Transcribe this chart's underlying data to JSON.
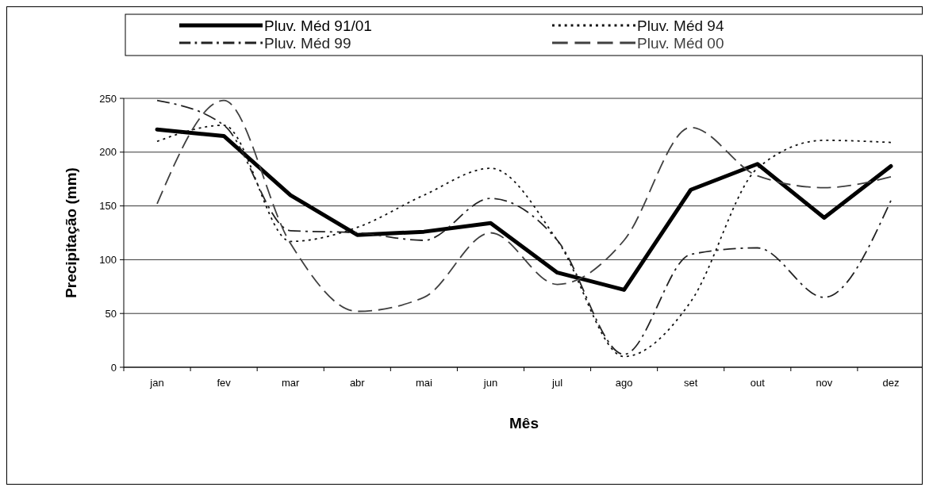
{
  "chart_data": {
    "type": "line",
    "xlabel": "Mês",
    "ylabel": "Precipitação (mm)",
    "categories": [
      "jan",
      "fev",
      "mar",
      "abr",
      "mai",
      "jun",
      "jul",
      "ago",
      "set",
      "out",
      "nov",
      "dez"
    ],
    "series": [
      {
        "name": "Pluv. Méd 91/01",
        "color": "#000000",
        "line_style": "solid",
        "values": [
          221,
          215,
          160,
          123,
          126,
          134,
          88,
          72,
          165,
          189,
          139,
          187
        ]
      },
      {
        "name": "Pluv. Méd 94",
        "color": "#111111",
        "line_style": "dotted",
        "values": [
          210,
          225,
          117,
          130,
          160,
          185,
          118,
          10,
          61,
          185,
          211,
          209
        ]
      },
      {
        "name": "Pluv. Méd 99",
        "color": "#222222",
        "line_style": "dashdot",
        "values": [
          248,
          225,
          127,
          125,
          118,
          157,
          118,
          12,
          105,
          111,
          65,
          155
        ]
      },
      {
        "name": "Pluv. Méd 00",
        "color": "#404040",
        "line_style": "dashed",
        "values": [
          152,
          248,
          115,
          52,
          65,
          125,
          77,
          118,
          223,
          178,
          167,
          177
        ]
      }
    ],
    "ylim": [
      0,
      250
    ],
    "yticks": [
      0,
      50,
      100,
      150,
      200,
      250
    ],
    "grid": "y",
    "legend": "top",
    "marker": "none"
  }
}
